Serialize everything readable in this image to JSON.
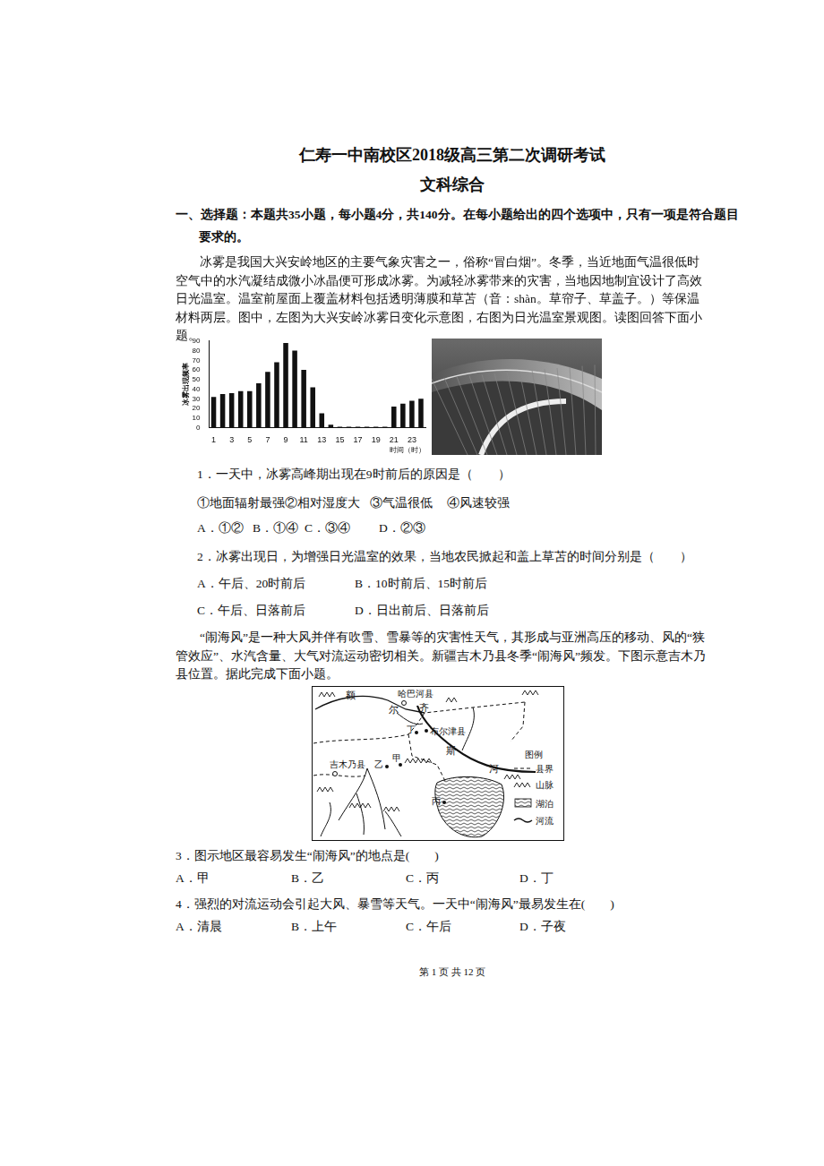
{
  "header": {
    "title": "仁寿一中南校区2018级高三第二次调研考试",
    "subject": "文科综合"
  },
  "section": {
    "lines": [
      "一、选择题：本题共35小题，每小题4分，共140分。在每小题给出的四个选项中，只有一项是符合题目",
      "要求的。"
    ]
  },
  "passage1": "冰雾是我国大兴安岭地区的主要气象灾害之一，俗称“冒白烟”。冬季，当近地面气温很低时空气中的水汽凝结成微小冰晶便可形成冰雾。为减轻冰雾带来的灾害，当地因地制宜设计了高效日光温室。温室前屋面上覆盖材料包括透明薄膜和草苫（音：shàn。草帘子、草盖子。）等保温材料两层。图中，左图为大兴安岭冰雾日变化示意图，右图为日光温室景观图。读图回答下面小题。",
  "chart_data": {
    "type": "bar",
    "y_label": "冰雾出现频率",
    "x_label": "时间（时）",
    "categories": [
      1,
      null,
      3,
      null,
      5,
      null,
      7,
      null,
      9,
      null,
      11,
      null,
      13,
      null,
      15,
      null,
      17,
      null,
      19,
      null,
      21,
      null,
      23,
      null
    ],
    "values": [
      32,
      35,
      36,
      38,
      38,
      46,
      58,
      68,
      88,
      80,
      60,
      42,
      15,
      3,
      1,
      1,
      1,
      1,
      1,
      1,
      22,
      25,
      28,
      30
    ],
    "color": "#111111",
    "ylim": [
      0,
      90
    ],
    "yticks": [
      0,
      10,
      20,
      30,
      40,
      50,
      60,
      70,
      80,
      90
    ],
    "grid": false
  },
  "questions": [
    {
      "stem": "1．一天中，冰雾高峰期出现在9时前后的原因是（　　）",
      "option_rows": [
        [
          "①地面辐射最强",
          "②相对湿度大",
          "③气温很低",
          "④风速较强"
        ],
        [
          "A．①②",
          "B．①④",
          "C．③④",
          "D．②③"
        ]
      ]
    },
    {
      "stem": "2．冰雾出现日，为增强日光温室的效果，当地农民掀起和盖上草苫的时间分别是（　　）",
      "option_rows": [
        [
          "A．午后、20时前后",
          "B．10时前后、15时前后"
        ],
        [
          "C．午后、日落前后",
          "D．日出前后、日落前后"
        ]
      ]
    },
    {
      "stem": "3．图示地区最容易发生“闹海风”的地点是(　　)",
      "option_rows": [
        [
          "A．甲",
          "B．乙",
          "C．丙",
          "D．丁"
        ]
      ]
    },
    {
      "stem": "4．强烈的对流运动会引起大风、暴雪等天气。一天中“闹海风”最易发生在(　　)",
      "option_rows": [
        [
          "A．清晨",
          "B．上午",
          "C．午后",
          "D．子夜"
        ]
      ]
    }
  ],
  "passage2": "“闹海风”是一种大风并伴有吹雪、雪暴等的灾害性天气，其形成与亚洲高压的移动、风的“狭管效应”、水汽含量、大气对流运动密切相关。新疆吉木乃县冬季“闹海风”频发。下图示意吉木乃县位置。据此完成下面小题。",
  "map": {
    "river_chars": [
      "额",
      "尔",
      "齐",
      "斯",
      "河"
    ],
    "places": {
      "habahe": "哈巴河县",
      "buerjin": "布尔津县",
      "jimunai": "吉木乃县",
      "jia": "甲",
      "yi": "乙",
      "bing": "丙",
      "ding": "丁"
    },
    "legend": {
      "title": "图例",
      "items": [
        "县界",
        "山脉",
        "湖泊",
        "河流"
      ]
    }
  },
  "footer": "第 1 页 共 12 页"
}
